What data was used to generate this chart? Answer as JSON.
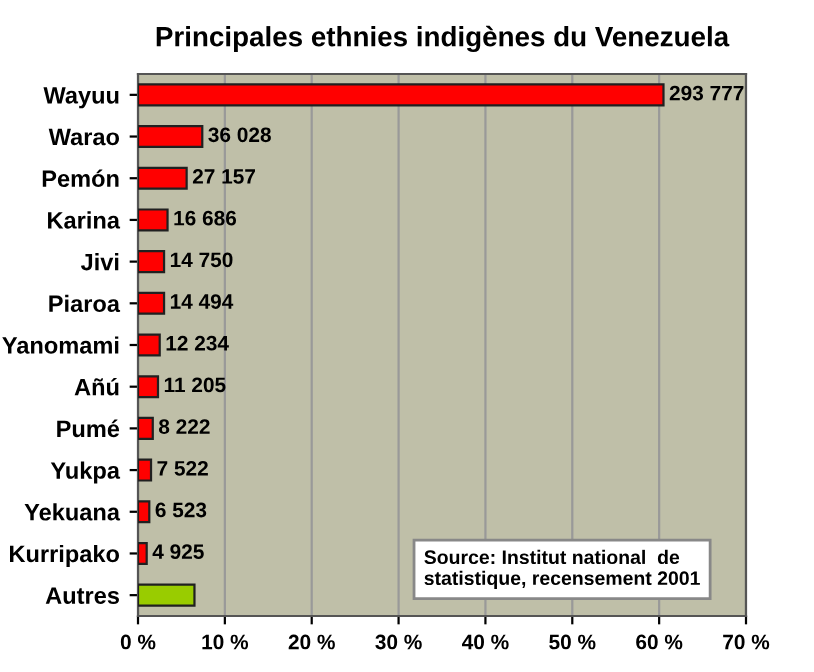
{
  "chart_data": {
    "type": "bar",
    "orientation": "horizontal",
    "title": "Principales ethnies indigènes du Venezuela",
    "categories": [
      "Wayuu",
      "Warao",
      "Pemón",
      "Karina",
      "Jivi",
      "Piaroa",
      "Yanomami",
      "Añú",
      "Pumé",
      "Yukpa",
      "Yekuana",
      "Kurripako",
      "Autres"
    ],
    "values": [
      60.5,
      7.4,
      5.6,
      3.4,
      3.0,
      3.0,
      2.5,
      2.3,
      1.7,
      1.5,
      1.3,
      1.0,
      6.5
    ],
    "colors": [
      "#ff0000",
      "#ff0000",
      "#ff0000",
      "#ff0000",
      "#ff0000",
      "#ff0000",
      "#ff0000",
      "#ff0000",
      "#ff0000",
      "#ff0000",
      "#ff0000",
      "#ff0000",
      "#99cc00"
    ],
    "xlim": [
      0,
      70
    ],
    "xticks": [
      {
        "value": 0,
        "label": "0 %"
      },
      {
        "value": 10,
        "label": "10 %"
      },
      {
        "value": 20,
        "label": "20 %"
      },
      {
        "value": 30,
        "label": "30 %"
      },
      {
        "value": 40,
        "label": "40 %"
      },
      {
        "value": 50,
        "label": "50 %"
      },
      {
        "value": 60,
        "label": "60 %"
      },
      {
        "value": 70,
        "label": "70 %"
      }
    ],
    "grid": "x",
    "annotations": [
      "Source: Institut national  de\nstatistique, recensement 2001",
      {
        "text": "293 777",
        "x": 60.5,
        "y": "Wayuu"
      },
      {
        "text": "36 028",
        "x": 7.4,
        "y": "Warao"
      },
      {
        "text": "27 157",
        "x": 5.6,
        "y": "Pemón"
      },
      {
        "text": "16 686",
        "x": 3.4,
        "y": "Karina"
      },
      {
        "text": "14 750",
        "x": 3.0,
        "y": "Jivi"
      },
      {
        "text": "14 494",
        "x": 3.0,
        "y": "Piaroa"
      },
      {
        "text": "12 234",
        "x": 2.5,
        "y": "Yanomami"
      },
      {
        "text": "11 205",
        "x": 2.3,
        "y": "Añú"
      },
      {
        "text": "8 222",
        "x": 1.7,
        "y": "Pumé"
      },
      {
        "text": "7 522",
        "x": 1.5,
        "y": "Yukpa"
      },
      {
        "text": "6 523",
        "x": 1.3,
        "y": "Yekuana"
      },
      {
        "text": "4 925",
        "x": 1.0,
        "y": "Kurripako"
      }
    ]
  }
}
